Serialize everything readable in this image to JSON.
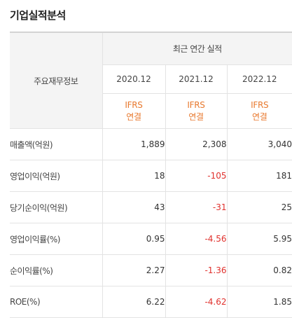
{
  "title": "기업실적분석",
  "table": {
    "row_header": "주요재무정보",
    "group_header": "최근 연간 실적",
    "years": [
      "2020.12",
      "2021.12",
      "2022.12"
    ],
    "ifrs": [
      {
        "line1": "IFRS",
        "line2": "연결"
      },
      {
        "line1": "IFRS",
        "line2": "연결"
      },
      {
        "line1": "IFRS",
        "line2": "연결"
      }
    ],
    "rows": [
      {
        "label": "매출액(억원)",
        "values": [
          "1,889",
          "2,308",
          "3,040"
        ]
      },
      {
        "label": "영업이익(억원)",
        "values": [
          "18",
          "-105",
          "181"
        ]
      },
      {
        "label": "당기순이익(억원)",
        "values": [
          "43",
          "-31",
          "25"
        ]
      },
      {
        "label": "영업이익률(%)",
        "values": [
          "0.95",
          "-4.56",
          "5.95"
        ]
      },
      {
        "label": "순이익률(%)",
        "values": [
          "2.27",
          "-1.36",
          "0.82"
        ]
      },
      {
        "label": "ROE(%)",
        "values": [
          "6.22",
          "-4.62",
          "1.85"
        ]
      }
    ]
  },
  "colors": {
    "ifrs_accent": "#e8792e",
    "negative": "#e0312d",
    "header_bg": "#f4f4f4"
  }
}
